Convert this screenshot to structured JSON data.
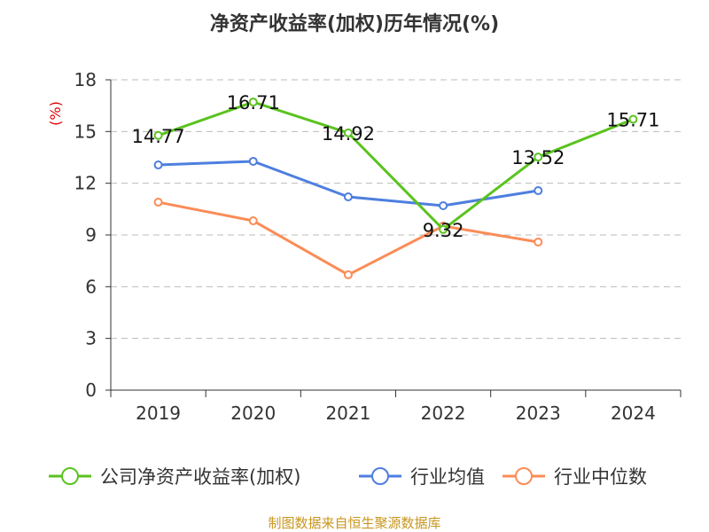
{
  "chart_data": {
    "type": "line",
    "title": "净资产收益率(加权)历年情况(%)",
    "ylabel": "(%)",
    "xlabel": "",
    "categories": [
      "2019",
      "2020",
      "2021",
      "2022",
      "2023",
      "2024"
    ],
    "ylim": [
      0,
      18
    ],
    "yticks": [
      "0",
      "3",
      "6",
      "9",
      "12",
      "15",
      "18"
    ],
    "grid": true,
    "legend_position": "bottom",
    "series": [
      {
        "name": "公司净资产收益率(加权)",
        "color": "#5ac31e",
        "values": [
          14.77,
          16.71,
          14.92,
          9.32,
          13.52,
          15.71
        ],
        "labels": [
          "14.77",
          "16.71",
          "14.92",
          "9.32",
          "13.52",
          "15.71"
        ]
      },
      {
        "name": "行业均值",
        "color": "#4e7fdf",
        "values": [
          13.06,
          13.27,
          11.21,
          10.7,
          11.57,
          null
        ]
      },
      {
        "name": "行业中位数",
        "color": "#fb8c57",
        "values": [
          10.9,
          9.82,
          6.69,
          9.52,
          8.59,
          null
        ]
      }
    ]
  },
  "source": "制图数据来自恒生聚源数据库"
}
